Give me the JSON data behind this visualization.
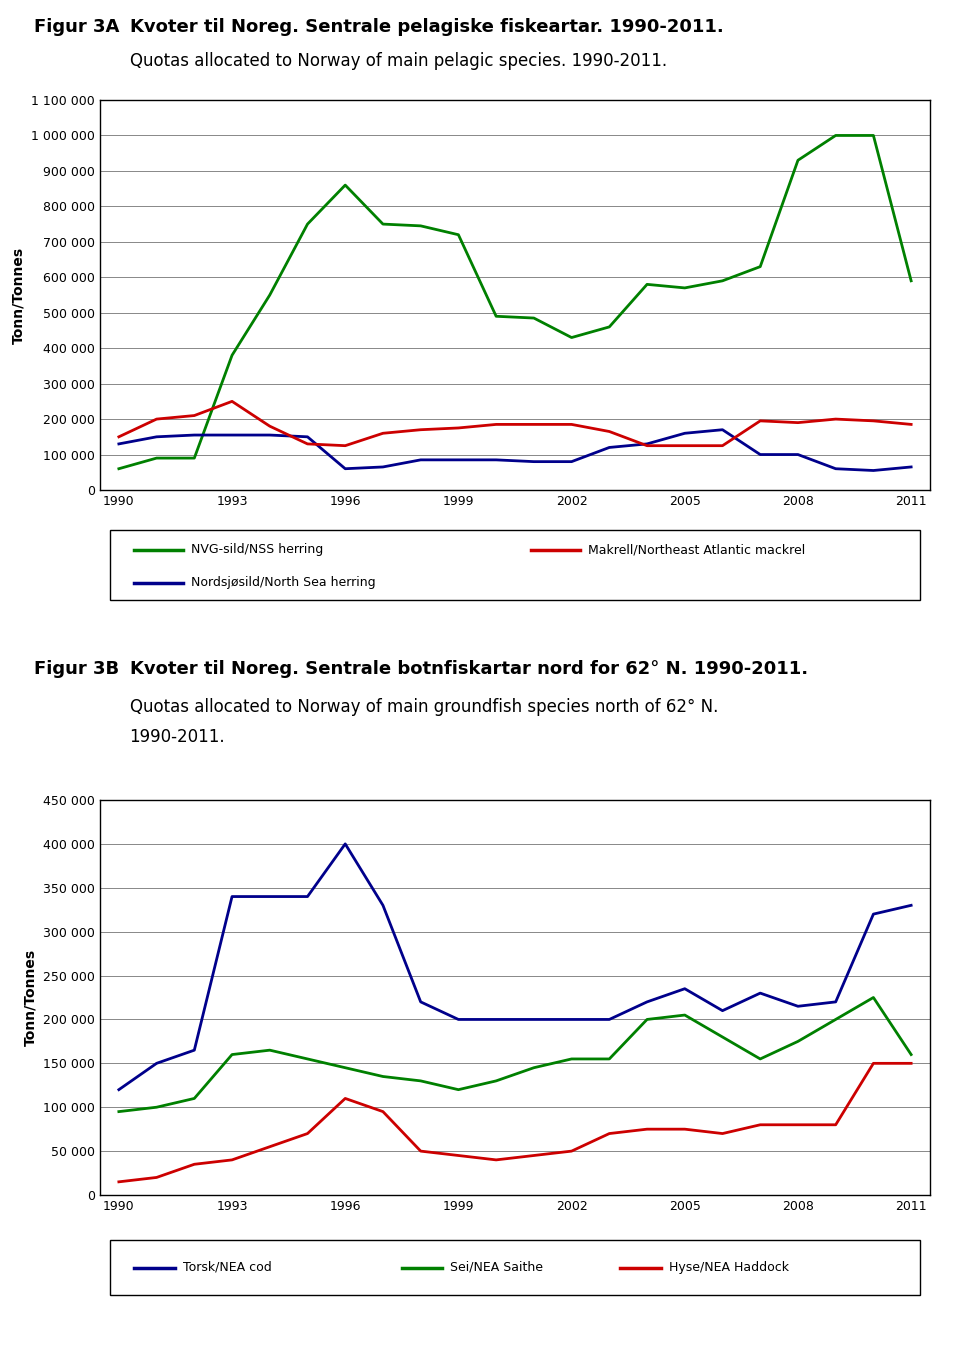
{
  "years": [
    1990,
    1991,
    1992,
    1993,
    1994,
    1995,
    1996,
    1997,
    1998,
    1999,
    2000,
    2001,
    2002,
    2003,
    2004,
    2005,
    2006,
    2007,
    2008,
    2009,
    2010,
    2011
  ],
  "fig3a": {
    "title_label": "Figur 3A",
    "title_main": "Kvoter til Noreg. Sentrale pelagiske fiskeartar. 1990-2011.",
    "title_sub": "Quotas allocated to Norway of main pelagic species. 1990-2011.",
    "ylabel": "Tonn/Tonnes",
    "ylim": [
      0,
      1100000
    ],
    "yticks": [
      0,
      100000,
      200000,
      300000,
      400000,
      500000,
      600000,
      700000,
      800000,
      900000,
      1000000,
      1100000
    ],
    "ytick_labels": [
      "0",
      "100 000",
      "200 000",
      "300 000",
      "400 000",
      "500 000",
      "600 000",
      "700 000",
      "800 000",
      "900 000",
      "1 000 000",
      "1 100 000"
    ],
    "xticks": [
      1990,
      1993,
      1996,
      1999,
      2002,
      2005,
      2008,
      2011
    ],
    "series": {
      "NVG-sild/NSS herring": {
        "color": "#008000",
        "values": [
          60000,
          90000,
          90000,
          380000,
          550000,
          750000,
          860000,
          750000,
          745000,
          720000,
          490000,
          485000,
          430000,
          460000,
          580000,
          570000,
          590000,
          630000,
          930000,
          1000000,
          1000000,
          590000
        ]
      },
      "Nordsjosild/North Sea herring": {
        "color": "#00008B",
        "values": [
          130000,
          150000,
          155000,
          155000,
          155000,
          150000,
          60000,
          65000,
          85000,
          85000,
          85000,
          80000,
          80000,
          120000,
          130000,
          160000,
          170000,
          100000,
          100000,
          60000,
          55000,
          65000
        ]
      },
      "Makrell/Northeast Atlantic mackrel": {
        "color": "#CC0000",
        "values": [
          150000,
          200000,
          210000,
          250000,
          180000,
          130000,
          125000,
          160000,
          170000,
          175000,
          185000,
          185000,
          185000,
          165000,
          125000,
          125000,
          125000,
          195000,
          190000,
          200000,
          195000,
          185000
        ]
      }
    },
    "legend": [
      {
        "label": "NVG-sild/NSS herring",
        "color": "#008000"
      },
      {
        "label": "Nordsjosild/North Sea herring",
        "color": "#00008B"
      },
      {
        "label": "Makrell/Northeast Atlantic mackrel",
        "color": "#CC0000"
      }
    ]
  },
  "fig3b": {
    "title_label": "Figur 3B",
    "title_main": "Kvoter til Noreg. Sentrale botnfiskartar nord for 62° N. 1990-2011.",
    "title_sub": "Quotas allocated to Norway of main groundfish species north of 62° N.\n1990-2011.",
    "ylabel": "Tonn/Tonnes",
    "ylim": [
      0,
      450000
    ],
    "yticks": [
      0,
      50000,
      100000,
      150000,
      200000,
      250000,
      300000,
      350000,
      400000,
      450000
    ],
    "ytick_labels": [
      "0",
      "50 000",
      "100 000",
      "150 000",
      "200 000",
      "250 000",
      "300 000",
      "350 000",
      "400 000",
      "450 000"
    ],
    "xticks": [
      1990,
      1993,
      1996,
      1999,
      2002,
      2005,
      2008,
      2011
    ],
    "series": {
      "Torsk/NEA cod": {
        "color": "#00008B",
        "values": [
          120000,
          150000,
          165000,
          340000,
          340000,
          340000,
          400000,
          330000,
          220000,
          200000,
          200000,
          200000,
          200000,
          200000,
          220000,
          235000,
          210000,
          230000,
          215000,
          220000,
          320000,
          330000
        ]
      },
      "Sei/NEA Saithe": {
        "color": "#008000",
        "values": [
          95000,
          100000,
          110000,
          160000,
          165000,
          155000,
          145000,
          135000,
          130000,
          120000,
          130000,
          145000,
          155000,
          155000,
          200000,
          205000,
          180000,
          155000,
          175000,
          200000,
          225000,
          160000
        ]
      },
      "Hyse/NEA Haddock": {
        "color": "#CC0000",
        "values": [
          15000,
          20000,
          35000,
          40000,
          55000,
          70000,
          110000,
          95000,
          50000,
          45000,
          40000,
          45000,
          50000,
          70000,
          75000,
          75000,
          70000,
          80000,
          80000,
          80000,
          150000,
          150000
        ]
      }
    },
    "legend": [
      {
        "label": "Torsk/NEA cod",
        "color": "#00008B"
      },
      {
        "label": "Sei/NEA Saithe",
        "color": "#008000"
      },
      {
        "label": "Hyse/NEA Haddock",
        "color": "#CC0000"
      }
    ]
  },
  "background_color": "#ffffff",
  "grid_color": "#888888",
  "title_fontsize": 13,
  "subtitle_fontsize": 12,
  "axis_label_fontsize": 10,
  "tick_fontsize": 9,
  "legend_fontsize": 9
}
